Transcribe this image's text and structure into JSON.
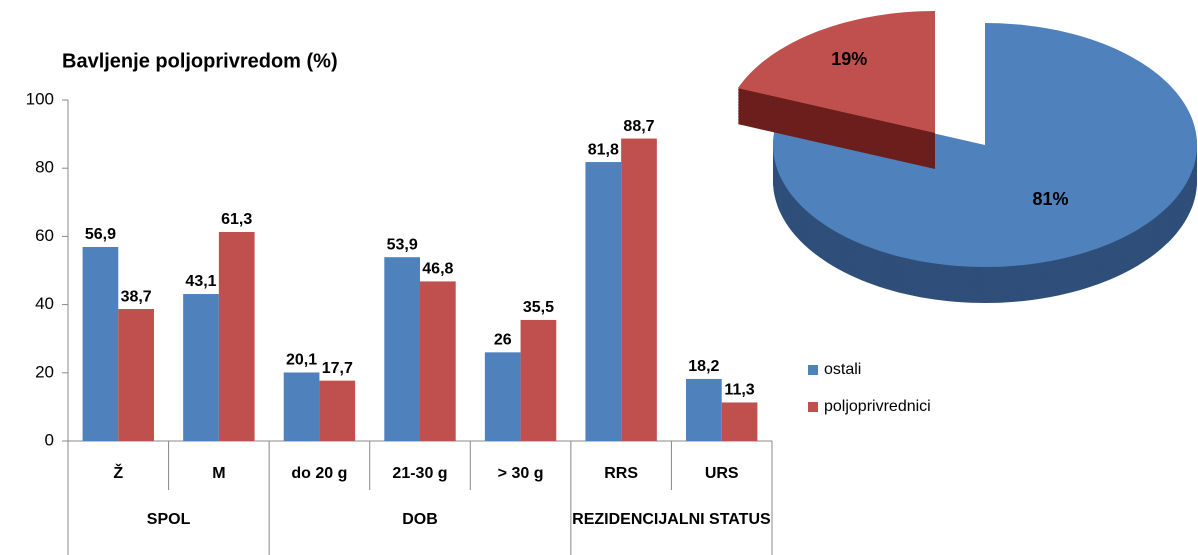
{
  "chart_data": [
    {
      "type": "bar",
      "title": "Bavljenje poljoprivredom (%)",
      "groups": [
        {
          "name": "SPOL",
          "categories": [
            "Ž",
            "M"
          ]
        },
        {
          "name": "DOB",
          "categories": [
            "do 20 g",
            "21-30 g",
            "> 30 g"
          ]
        },
        {
          "name": "REZIDENCIJALNI STATUS",
          "categories": [
            "RRS",
            "URS"
          ]
        }
      ],
      "series": [
        {
          "name": "ostali",
          "color": "#4f81bd",
          "values": [
            56.9,
            43.1,
            20.1,
            53.9,
            26,
            81.8,
            18.2
          ],
          "value_labels": [
            "56,9",
            "43,1",
            "20,1",
            "53,9",
            "26",
            "81,8",
            "18,2"
          ]
        },
        {
          "name": "poljoprivrednici",
          "color": "#c0504d",
          "values": [
            38.7,
            61.3,
            17.7,
            46.8,
            35.5,
            88.7,
            11.3
          ],
          "value_labels": [
            "38,7",
            "61,3",
            "17,7",
            "46,8",
            "35,5",
            "88,7",
            "11,3"
          ]
        }
      ],
      "ylim": [
        0,
        100
      ],
      "yticks": [
        0,
        20,
        40,
        60,
        80,
        100
      ],
      "grid": false,
      "legend": "right"
    },
    {
      "type": "pie",
      "values": [
        81,
        19
      ],
      "value_labels": [
        "81%",
        "19%"
      ],
      "colors": [
        "#4f81bd",
        "#c0504d"
      ],
      "side_colors": [
        "#2f4f7a",
        "#6b1f1d"
      ]
    }
  ]
}
